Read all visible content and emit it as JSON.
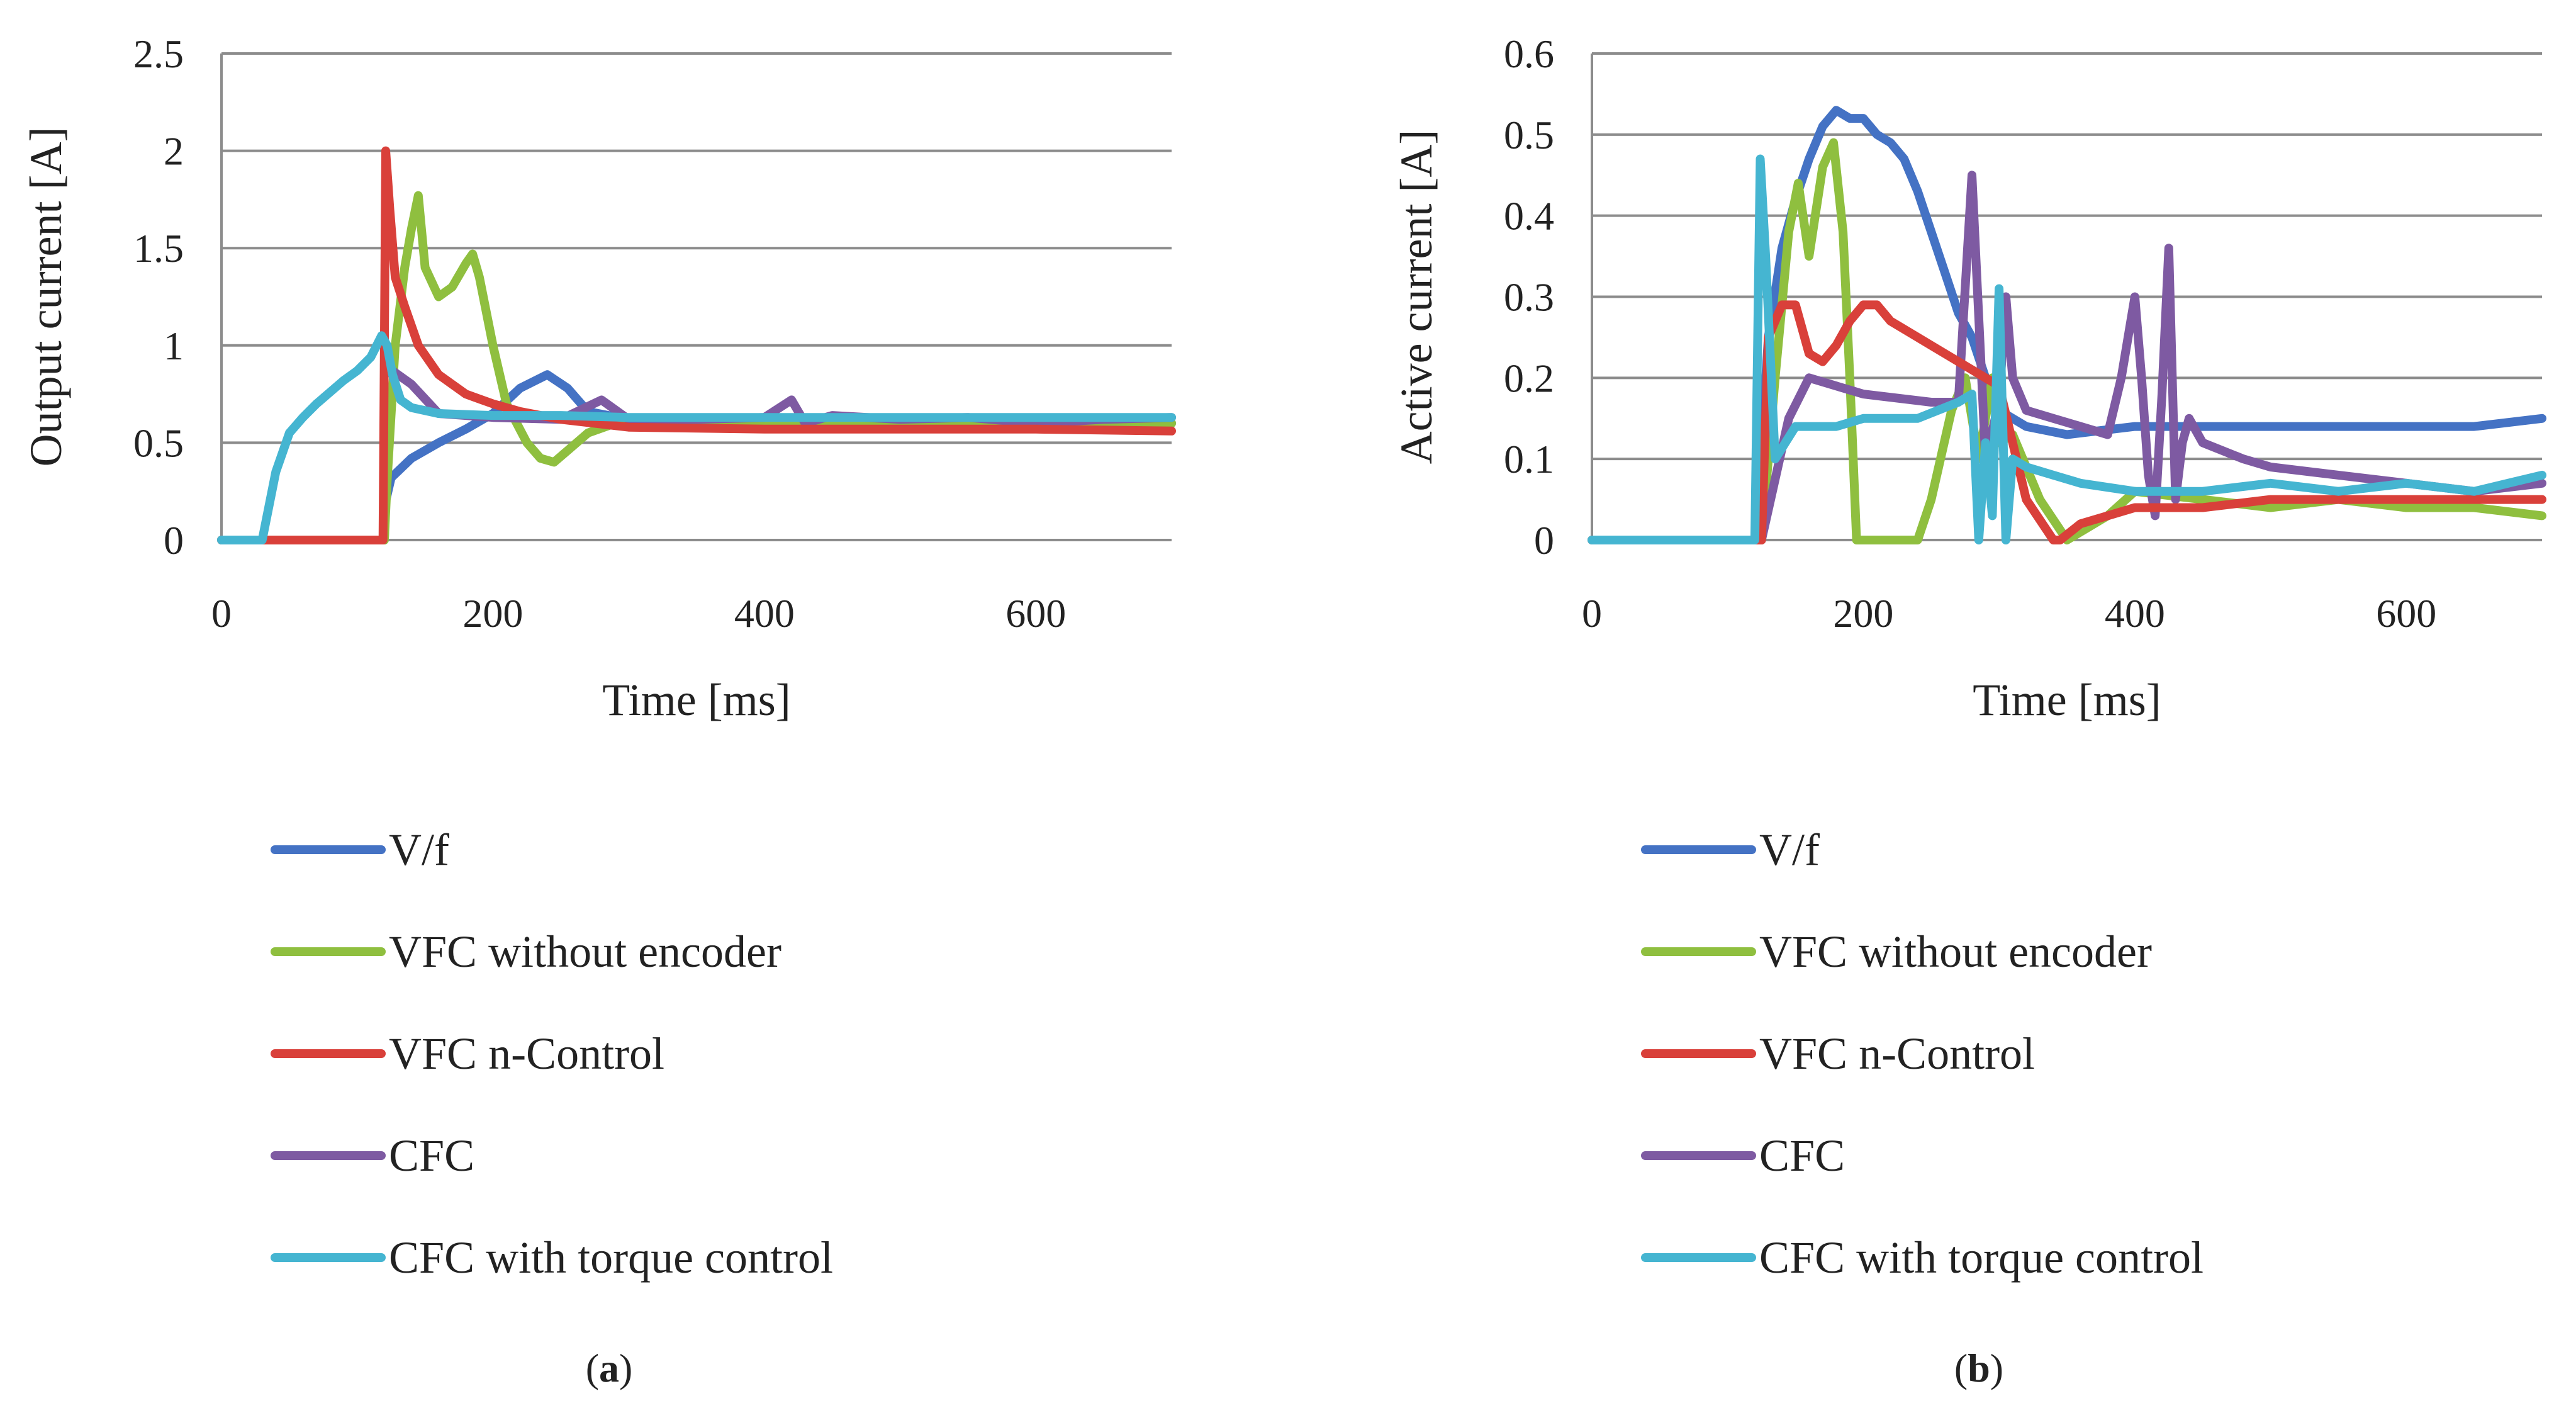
{
  "figure": {
    "panels": [
      {
        "caption_open": "(",
        "caption_letter": "a",
        "caption_close": ")"
      },
      {
        "caption_open": "(",
        "caption_letter": "b",
        "caption_close": ")"
      }
    ]
  },
  "chart_data": [
    {
      "type": "line",
      "title": "",
      "xlabel": "Time [ms]",
      "ylabel": "Output current [A]",
      "xlim": [
        0,
        700
      ],
      "ylim": [
        0,
        2.5
      ],
      "xticks": [
        0,
        200,
        400,
        600
      ],
      "yticks": [
        0,
        0.5,
        1,
        1.5,
        2,
        2.5
      ],
      "ytick_labels": [
        "0",
        "0.5",
        "1",
        "1.5",
        "2",
        "2.5"
      ],
      "grid": true,
      "legend_position": "bottom",
      "series": [
        {
          "name": "V/f",
          "color": "#4472C4",
          "x": [
            0,
            120,
            121,
            125,
            140,
            160,
            180,
            200,
            220,
            240,
            255,
            270,
            300,
            350,
            400,
            450,
            500,
            550,
            600,
            650,
            700
          ],
          "y": [
            0,
            0,
            0.2,
            0.32,
            0.42,
            0.5,
            0.57,
            0.65,
            0.78,
            0.85,
            0.78,
            0.66,
            0.62,
            0.6,
            0.6,
            0.59,
            0.6,
            0.6,
            0.6,
            0.59,
            0.6
          ]
        },
        {
          "name": "VFC without encoder",
          "color": "#8FBF3F",
          "x": [
            0,
            120,
            122,
            128,
            135,
            140,
            145,
            150,
            160,
            170,
            180,
            185,
            190,
            200,
            210,
            225,
            235,
            245,
            255,
            270,
            290,
            320,
            400,
            500,
            600,
            700
          ],
          "y": [
            0,
            0,
            0.3,
            1.0,
            1.4,
            1.6,
            1.77,
            1.4,
            1.25,
            1.3,
            1.42,
            1.47,
            1.35,
            1.0,
            0.7,
            0.5,
            0.42,
            0.4,
            0.46,
            0.55,
            0.6,
            0.6,
            0.6,
            0.6,
            0.6,
            0.6
          ]
        },
        {
          "name": "VFC n-Control",
          "color": "#D9403A",
          "x": [
            0,
            30,
            119,
            120,
            121,
            124,
            128,
            135,
            145,
            160,
            180,
            200,
            220,
            250,
            300,
            400,
            500,
            600,
            700
          ],
          "y": [
            0,
            0,
            0,
            1.0,
            2.0,
            1.7,
            1.35,
            1.2,
            1.0,
            0.85,
            0.75,
            0.7,
            0.66,
            0.62,
            0.58,
            0.57,
            0.57,
            0.57,
            0.56
          ]
        },
        {
          "name": "CFC",
          "color": "#7E5AA2",
          "x": [
            120,
            140,
            160,
            200,
            250,
            280,
            300,
            350,
            400,
            420,
            430,
            450,
            500,
            550,
            600,
            650,
            700
          ],
          "y": [
            0.9,
            0.8,
            0.65,
            0.63,
            0.62,
            0.72,
            0.62,
            0.62,
            0.63,
            0.72,
            0.6,
            0.64,
            0.62,
            0.63,
            0.6,
            0.62,
            0.63
          ]
        },
        {
          "name": "CFC with torque control",
          "color": "#45B5D1",
          "x": [
            0,
            30,
            40,
            50,
            60,
            70,
            80,
            90,
            100,
            110,
            118,
            122,
            126,
            132,
            140,
            160,
            200,
            250,
            300,
            400,
            500,
            600,
            700
          ],
          "y": [
            0,
            0,
            0.35,
            0.55,
            0.63,
            0.7,
            0.76,
            0.82,
            0.87,
            0.94,
            1.05,
            1.0,
            0.85,
            0.72,
            0.68,
            0.65,
            0.64,
            0.64,
            0.63,
            0.63,
            0.63,
            0.63,
            0.63
          ]
        }
      ]
    },
    {
      "type": "line",
      "title": "",
      "xlabel": "Time [ms]",
      "ylabel": "Active current [A]",
      "xlim": [
        0,
        700
      ],
      "ylim": [
        0,
        0.6
      ],
      "xticks": [
        0,
        200,
        400,
        600
      ],
      "yticks": [
        0,
        0.1,
        0.2,
        0.3,
        0.4,
        0.5,
        0.6
      ],
      "ytick_labels": [
        "0",
        "0.1",
        "0.2",
        "0.3",
        "0.4",
        "0.5",
        "0.6"
      ],
      "grid": true,
      "legend_position": "bottom",
      "series": [
        {
          "name": "V/f",
          "color": "#4472C4",
          "x": [
            0,
            120,
            125,
            130,
            140,
            150,
            160,
            170,
            180,
            190,
            200,
            210,
            220,
            230,
            240,
            250,
            260,
            270,
            280,
            290,
            300,
            320,
            350,
            400,
            450,
            500,
            550,
            600,
            650,
            700
          ],
          "y": [
            0,
            0,
            0.12,
            0.25,
            0.36,
            0.42,
            0.47,
            0.51,
            0.53,
            0.52,
            0.52,
            0.5,
            0.49,
            0.47,
            0.43,
            0.38,
            0.33,
            0.28,
            0.25,
            0.2,
            0.16,
            0.14,
            0.13,
            0.14,
            0.14,
            0.14,
            0.14,
            0.14,
            0.14,
            0.15
          ]
        },
        {
          "name": "VFC without encoder",
          "color": "#8FBF3F",
          "x": [
            0,
            125,
            135,
            145,
            152,
            160,
            170,
            178,
            185,
            190,
            195,
            200,
            240,
            250,
            265,
            275,
            285,
            295,
            300,
            310,
            330,
            350,
            380,
            400,
            450,
            500,
            550,
            600,
            650,
            700
          ],
          "y": [
            0,
            0,
            0.2,
            0.38,
            0.44,
            0.35,
            0.46,
            0.49,
            0.38,
            0.2,
            0.0,
            0.0,
            0.0,
            0.05,
            0.16,
            0.2,
            0.1,
            0.2,
            0.12,
            0.13,
            0.05,
            0.0,
            0.03,
            0.06,
            0.05,
            0.04,
            0.05,
            0.04,
            0.04,
            0.03
          ]
        },
        {
          "name": "VFC n-Control",
          "color": "#D9403A",
          "x": [
            0,
            125,
            130,
            140,
            150,
            160,
            170,
            180,
            190,
            200,
            210,
            220,
            240,
            260,
            280,
            300,
            320,
            340,
            345,
            360,
            380,
            400,
            450,
            500,
            550,
            600,
            650,
            700
          ],
          "y": [
            0,
            0,
            0.25,
            0.29,
            0.29,
            0.23,
            0.22,
            0.24,
            0.27,
            0.29,
            0.29,
            0.27,
            0.25,
            0.23,
            0.21,
            0.19,
            0.05,
            0.0,
            0.0,
            0.02,
            0.03,
            0.04,
            0.04,
            0.05,
            0.05,
            0.05,
            0.05,
            0.05
          ]
        },
        {
          "name": "CFC",
          "color": "#7E5AA2",
          "x": [
            125,
            145,
            160,
            200,
            250,
            270,
            280,
            290,
            300,
            305,
            310,
            320,
            340,
            360,
            380,
            390,
            400,
            405,
            410,
            415,
            420,
            425,
            430,
            435,
            440,
            450,
            480,
            500,
            550,
            600,
            650,
            700
          ],
          "y": [
            0.0,
            0.15,
            0.2,
            0.18,
            0.17,
            0.17,
            0.45,
            0.1,
            0.17,
            0.3,
            0.2,
            0.16,
            0.15,
            0.14,
            0.13,
            0.2,
            0.3,
            0.2,
            0.08,
            0.03,
            0.18,
            0.36,
            0.05,
            0.12,
            0.15,
            0.12,
            0.1,
            0.09,
            0.08,
            0.07,
            0.06,
            0.07
          ]
        },
        {
          "name": "CFC with torque control",
          "color": "#45B5D1",
          "x": [
            0,
            115,
            120,
            124,
            128,
            135,
            150,
            180,
            200,
            240,
            270,
            280,
            285,
            290,
            295,
            300,
            305,
            310,
            320,
            340,
            360,
            400,
            450,
            500,
            550,
            600,
            650,
            700
          ],
          "y": [
            0,
            0,
            0.0,
            0.47,
            0.35,
            0.1,
            0.14,
            0.14,
            0.15,
            0.15,
            0.17,
            0.18,
            0.0,
            0.12,
            0.03,
            0.31,
            0.0,
            0.1,
            0.09,
            0.08,
            0.07,
            0.06,
            0.06,
            0.07,
            0.06,
            0.07,
            0.06,
            0.08
          ]
        }
      ]
    }
  ]
}
